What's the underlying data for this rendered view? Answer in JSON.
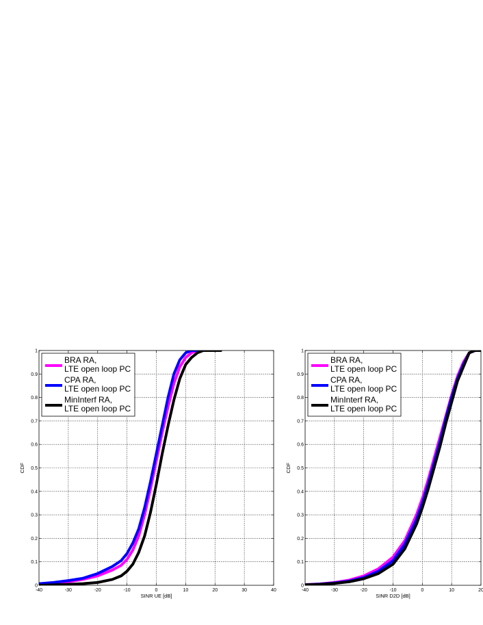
{
  "chart_data": [
    {
      "type": "line",
      "xlabel": "SINR UE [dB]",
      "ylabel": "CDF",
      "xlim": [
        -40,
        40
      ],
      "ylim": [
        0,
        1
      ],
      "xticks": [
        "-40",
        "-30",
        "-20",
        "-10",
        "0",
        "10",
        "20",
        "30",
        "40"
      ],
      "yticks": [
        "0",
        "0.1",
        "0.2",
        "0.3",
        "0.4",
        "0.5",
        "0.6",
        "0.7",
        "0.8",
        "0.9",
        "1"
      ],
      "grid": true,
      "legend_position": "top-left",
      "series": [
        {
          "name": "BRA RA,\nLTE open loop PC",
          "color": "#ff00ff",
          "x": [
            -40,
            -35,
            -30,
            -25,
            -20,
            -15,
            -12,
            -10,
            -8,
            -6,
            -4,
            -2,
            0,
            2,
            4,
            6,
            8,
            10,
            12,
            14,
            16
          ],
          "y": [
            0.005,
            0.01,
            0.015,
            0.025,
            0.04,
            0.065,
            0.085,
            0.11,
            0.15,
            0.21,
            0.3,
            0.41,
            0.53,
            0.65,
            0.76,
            0.86,
            0.93,
            0.97,
            0.99,
            1.0,
            1.0
          ]
        },
        {
          "name": "CPA RA,\nLTE open loop PC",
          "color": "#0000ff",
          "x": [
            -40,
            -35,
            -30,
            -25,
            -20,
            -15,
            -12,
            -10,
            -8,
            -6,
            -4,
            -2,
            0,
            2,
            4,
            6,
            8,
            10,
            12,
            14
          ],
          "y": [
            0.007,
            0.012,
            0.02,
            0.03,
            0.05,
            0.08,
            0.105,
            0.135,
            0.18,
            0.24,
            0.33,
            0.44,
            0.56,
            0.68,
            0.8,
            0.9,
            0.96,
            0.99,
            1.0,
            1.0
          ]
        },
        {
          "name": "MinInterf RA,\nLTE open loop PC",
          "color": "#000000",
          "x": [
            -40,
            -35,
            -30,
            -25,
            -20,
            -15,
            -12,
            -10,
            -8,
            -6,
            -4,
            -2,
            0,
            2,
            4,
            6,
            8,
            10,
            12,
            14,
            16,
            18,
            22
          ],
          "y": [
            0.0,
            0.002,
            0.004,
            0.007,
            0.012,
            0.025,
            0.04,
            0.06,
            0.09,
            0.14,
            0.21,
            0.31,
            0.43,
            0.56,
            0.68,
            0.79,
            0.88,
            0.94,
            0.97,
            0.99,
            1.0,
            1.0,
            1.0
          ]
        }
      ]
    },
    {
      "type": "line",
      "xlabel": "SINR D2D [dB]",
      "ylabel": "CDF",
      "xlim": [
        -40,
        20
      ],
      "ylim": [
        0,
        1
      ],
      "xticks": [
        "-40",
        "-30",
        "-20",
        "-10",
        "0",
        "10",
        "20"
      ],
      "yticks": [
        "0",
        "0.1",
        "0.2",
        "0.3",
        "0.4",
        "0.5",
        "0.6",
        "0.7",
        "0.8",
        "0.9",
        "1"
      ],
      "grid": true,
      "legend_position": "top-left",
      "series": [
        {
          "name": "BRA RA,\nLTE open loop PC",
          "color": "#ff00ff",
          "x": [
            -40,
            -35,
            -30,
            -25,
            -20,
            -15,
            -10,
            -6,
            -2,
            0,
            2,
            4,
            6,
            8,
            10,
            12,
            14,
            16,
            18,
            20
          ],
          "y": [
            0.003,
            0.006,
            0.012,
            0.022,
            0.04,
            0.07,
            0.12,
            0.19,
            0.3,
            0.37,
            0.45,
            0.54,
            0.63,
            0.72,
            0.81,
            0.89,
            0.95,
            0.99,
            1.0,
            1.0
          ]
        },
        {
          "name": "CPA RA,\nLTE open loop PC",
          "color": "#0000ff",
          "x": [
            -40,
            -35,
            -30,
            -25,
            -20,
            -15,
            -10,
            -6,
            -2,
            0,
            2,
            4,
            6,
            8,
            10,
            12,
            14,
            16,
            18,
            20
          ],
          "y": [
            0.002,
            0.005,
            0.01,
            0.018,
            0.033,
            0.06,
            0.105,
            0.175,
            0.28,
            0.35,
            0.43,
            0.52,
            0.61,
            0.71,
            0.8,
            0.88,
            0.94,
            0.99,
            1.0,
            1.0
          ]
        },
        {
          "name": "MinInterf RA,\nLTE open loop PC",
          "color": "#000000",
          "x": [
            -40,
            -35,
            -30,
            -25,
            -20,
            -15,
            -10,
            -6,
            -2,
            0,
            2,
            4,
            6,
            8,
            10,
            12,
            14,
            16,
            18,
            20
          ],
          "y": [
            0.002,
            0.004,
            0.008,
            0.015,
            0.028,
            0.05,
            0.09,
            0.155,
            0.26,
            0.33,
            0.41,
            0.5,
            0.59,
            0.69,
            0.78,
            0.87,
            0.93,
            0.99,
            1.0,
            1.0
          ]
        }
      ]
    }
  ]
}
